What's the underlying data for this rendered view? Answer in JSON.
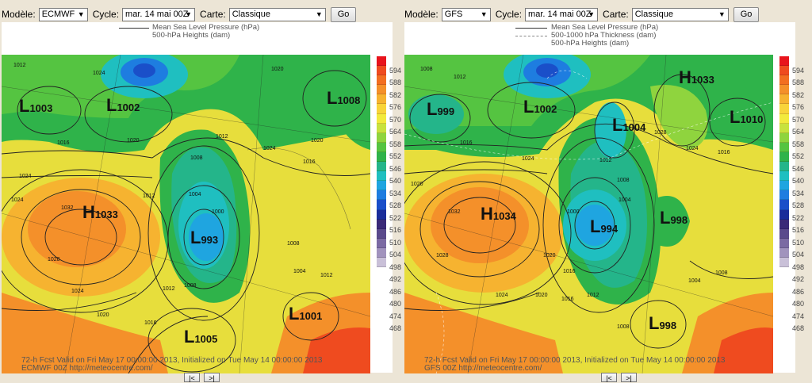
{
  "left": {
    "controls": {
      "model_label": "Modèle:",
      "model": "ECMWF",
      "cycle_label": "Cycle:",
      "cycle": "mar. 14 mai 00Z",
      "map_label": "Carte:",
      "map": "Classique",
      "go": "Go"
    },
    "legend": [
      "Mean Sea Level Pressure (hPa)",
      "500-hPa Heights (dam)"
    ],
    "systems": [
      {
        "letter": "L",
        "value": "1003"
      },
      {
        "letter": "L",
        "value": "1002"
      },
      {
        "letter": "L",
        "value": "1008"
      },
      {
        "letter": "H",
        "value": "1033"
      },
      {
        "letter": "L",
        "value": "993"
      },
      {
        "letter": "L",
        "value": "1001"
      },
      {
        "letter": "L",
        "value": "1005"
      }
    ],
    "isobars": [
      "1012",
      "1024",
      "1020",
      "1016",
      "1020",
      "1012",
      "1024",
      "1020",
      "1016",
      "1008",
      "1000",
      "1004",
      "1012",
      "1024",
      "1024",
      "1032",
      "1028",
      "1024",
      "1020",
      "1016",
      "1008",
      "1012",
      "1008",
      "1004",
      "1012"
    ],
    "footer": [
      "72-h Fcst Valid on Fri May 17 00:00:00 2013, Initialized on Tue May 14 00:00:00 2013",
      "ECMWF 00Z http://meteocentre.com/"
    ],
    "nav": [
      "|<",
      ">|"
    ]
  },
  "right": {
    "controls": {
      "model_label": "Modèle:",
      "model": "GFS",
      "cycle_label": "Cycle:",
      "cycle": "mar. 14 mai 00Z",
      "map_label": "Carte:",
      "map": "Classique",
      "go": "Go"
    },
    "legend": [
      "Mean Sea Level Pressure (hPa)",
      "500-1000 hPa Thickness (dam)",
      "500-hPa Heights (dam)"
    ],
    "systems": [
      {
        "letter": "L",
        "value": "999"
      },
      {
        "letter": "L",
        "value": "1002"
      },
      {
        "letter": "H",
        "value": "1033"
      },
      {
        "letter": "L",
        "value": "1004"
      },
      {
        "letter": "L",
        "value": "1010"
      },
      {
        "letter": "H",
        "value": "1034"
      },
      {
        "letter": "L",
        "value": "994"
      },
      {
        "letter": "L",
        "value": "998"
      },
      {
        "letter": "L",
        "value": "998"
      }
    ],
    "isobars": [
      "1008",
      "1012",
      "1016",
      "1024",
      "1020",
      "1032",
      "1028",
      "1024",
      "1016",
      "1012",
      "1008",
      "1004",
      "1000",
      "1028",
      "1024",
      "1020",
      "1016",
      "1004",
      "1008",
      "1008",
      "1012",
      "1016",
      "1020"
    ],
    "footer": [
      "72-h Fcst Valid on Fri May 17 00:00:00 2013, Initialized on Tue May 14 00:00:00 2013",
      "GFS 00Z http://meteocentre.com/"
    ],
    "nav": [
      "|<",
      ">|"
    ]
  },
  "colorbar": {
    "labels": [
      "594",
      "588",
      "582",
      "576",
      "570",
      "564",
      "558",
      "552",
      "546",
      "540",
      "534",
      "528",
      "522",
      "516",
      "510",
      "504",
      "498",
      "492",
      "486",
      "480",
      "474",
      "468"
    ],
    "colors": [
      "#e8141c",
      "#ef4b1f",
      "#f26e21",
      "#f4902a",
      "#f6b330",
      "#f8d43a",
      "#f2ea3d",
      "#c8e23e",
      "#8fd43e",
      "#55c441",
      "#2fb34a",
      "#24b58a",
      "#1fbfc0",
      "#1fa5e0",
      "#1e7de0",
      "#1a4fc9",
      "#1a2d9a",
      "#3a2a78",
      "#5a4a8c",
      "#7b6aa3",
      "#a193bd",
      "#c9c0d8"
    ]
  }
}
